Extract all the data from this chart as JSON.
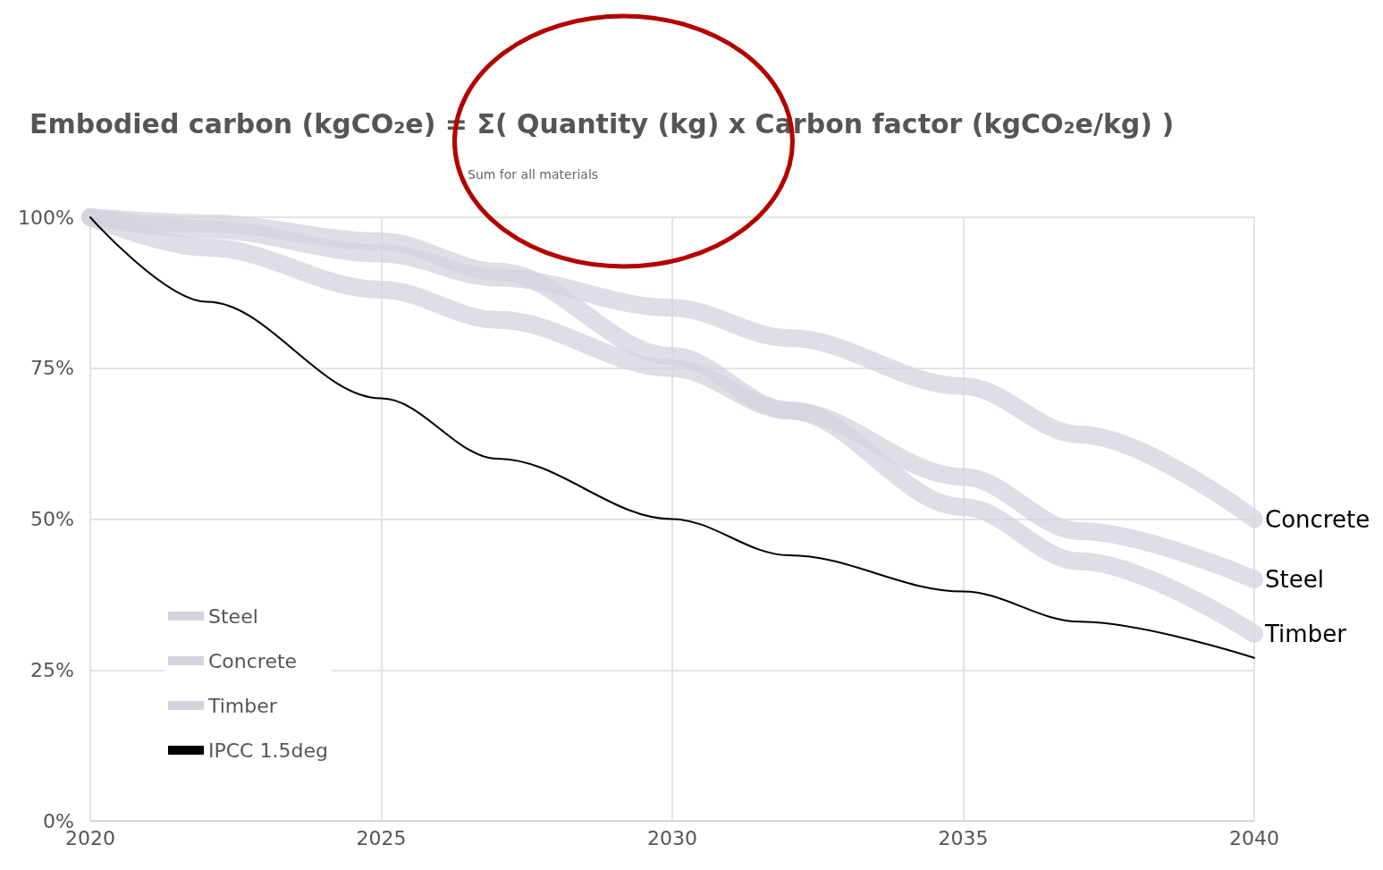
{
  "chart_data": {
    "type": "line",
    "title": "Embodied carbon (kgCO₂e) = Σ( Quantity (kg) x Carbon factor (kgCO₂e/kg) )",
    "annotations": [
      "Sum for all materials"
    ],
    "x": [
      2020,
      2022,
      2025,
      2027,
      2030,
      2032,
      2035,
      2037,
      2040
    ],
    "series": [
      {
        "name": "Steel",
        "color": "#d4d2dd",
        "values": [
          100,
          95,
          88,
          83,
          75,
          68,
          57,
          48,
          40
        ]
      },
      {
        "name": "Concrete",
        "color": "#d4d2dd",
        "values": [
          100,
          98,
          94,
          90,
          85,
          80,
          72,
          64,
          50
        ]
      },
      {
        "name": "Timber",
        "color": "#d4d2dd",
        "values": [
          100,
          99,
          96,
          91,
          77,
          68,
          52,
          43,
          31
        ]
      },
      {
        "name": "IPCC 1.5deg",
        "color": "#000000",
        "values": [
          100,
          86,
          70,
          60,
          50,
          44,
          38,
          33,
          27
        ]
      }
    ],
    "xlim": [
      2020,
      2040
    ],
    "xticks": [
      2020,
      2025,
      2030,
      2035,
      2040
    ],
    "ylim": [
      0,
      100
    ],
    "yticks": [
      {
        "value": 0,
        "label": "0%"
      },
      {
        "value": 25,
        "label": "25%"
      },
      {
        "value": 50,
        "label": "50%"
      },
      {
        "value": 75,
        "label": "75%"
      },
      {
        "value": 100,
        "label": "100%"
      }
    ],
    "grid": true,
    "legend": "bottom left",
    "marker": "none",
    "line_style": "solid"
  }
}
